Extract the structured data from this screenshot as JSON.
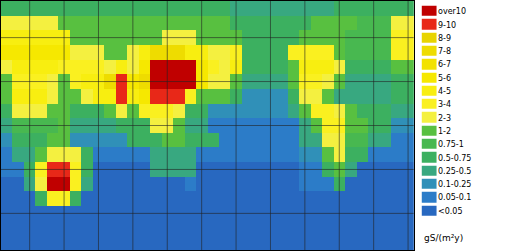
{
  "chart_data": {
    "type": "heatmap",
    "unit": "gS/(m²y)",
    "x": [
      -20,
      -10,
      0,
      10,
      20,
      30,
      40,
      50,
      60,
      70,
      80,
      90,
      100,
      110,
      120,
      130,
      140,
      150,
      160,
      170,
      180,
      190,
      200,
      210,
      220,
      230,
      240,
      250,
      260,
      270,
      280,
      290,
      300,
      310,
      320,
      330
    ],
    "y": [
      80,
      70,
      60,
      50,
      40,
      30,
      20,
      10,
      0,
      -10,
      -20,
      -30,
      -40,
      -50,
      -60,
      -70,
      -80
    ],
    "xlim": [
      -25,
      335
    ],
    "ylim": [
      -85,
      85
    ],
    "xticks": [
      0,
      30,
      60,
      90,
      120,
      150,
      180,
      210,
      240,
      270,
      300,
      330
    ],
    "yticks": [
      -60,
      -30,
      0,
      30,
      60
    ],
    "grid": true,
    "tick_labels": false,
    "cells": [
      [
        0.6,
        0.6,
        0.6,
        0.6,
        0.6,
        0.6,
        0.6,
        0.6,
        0.6,
        0.6,
        0.6,
        0.6,
        0.6,
        0.6,
        0.6,
        0.6,
        0.6,
        0.6,
        0.6,
        0.6,
        0.3,
        0.3,
        0.3,
        0.3,
        0.3,
        0.3,
        0.3,
        0.3,
        0.3,
        0.6,
        0.6,
        0.6,
        0.6,
        0.6,
        0.6,
        0.6
      ],
      [
        2.5,
        2.5,
        2.5,
        2.5,
        2.5,
        1.5,
        1.5,
        1.5,
        1.5,
        1.5,
        1.5,
        1.5,
        1.5,
        1.5,
        1.5,
        1.5,
        1.5,
        1.5,
        1.5,
        1.5,
        0.6,
        0.6,
        0.6,
        0.6,
        0.6,
        0.6,
        0.6,
        1.5,
        1.5,
        1.5,
        1.5,
        0.9,
        0.9,
        0.9,
        2.5,
        2.5
      ],
      [
        4.5,
        4.5,
        4.5,
        4.5,
        4.5,
        4.5,
        1.5,
        1.5,
        1.5,
        1.5,
        1.5,
        1.5,
        1.5,
        1.5,
        2.5,
        2.5,
        2.5,
        1.5,
        1.5,
        1.5,
        1.5,
        0.6,
        0.6,
        0.6,
        0.6,
        0.6,
        1.5,
        1.5,
        1.5,
        1.5,
        0.9,
        0.9,
        0.9,
        0.9,
        3.5,
        3.5
      ],
      [
        5.5,
        5.5,
        5.5,
        5.5,
        5.5,
        5.5,
        2.5,
        2.5,
        2.5,
        1.5,
        1.5,
        2.5,
        4.5,
        7.5,
        7.5,
        7.5,
        4.5,
        4.5,
        2.5,
        2.5,
        3.5,
        0.6,
        0.6,
        0.6,
        0.6,
        3.5,
        3.5,
        3.5,
        3.5,
        1.5,
        0.9,
        0.9,
        0.9,
        0.9,
        3.5,
        3.5
      ],
      [
        2.5,
        4.5,
        4.5,
        4.5,
        4.5,
        3.5,
        3.5,
        3.5,
        3.5,
        2.5,
        4.5,
        2.5,
        5.5,
        12,
        12,
        12,
        12,
        5.5,
        3.5,
        2.5,
        4.5,
        0.6,
        0.6,
        0.6,
        0.6,
        1.5,
        4.5,
        4.5,
        4.5,
        2.5,
        0.6,
        0.6,
        0.6,
        0.6,
        1.5,
        1.5
      ],
      [
        1.5,
        3.5,
        3.5,
        3.5,
        2.5,
        1.5,
        3.5,
        4.5,
        4.5,
        7.5,
        9.5,
        5.5,
        7.5,
        12,
        12,
        12,
        12,
        5.5,
        2.5,
        2.5,
        1.5,
        0.3,
        0.3,
        0.3,
        0.3,
        1.5,
        3.5,
        3.5,
        2.5,
        1.5,
        0.3,
        0.3,
        0.3,
        0.3,
        0.6,
        0.6
      ],
      [
        1.5,
        4.5,
        4.5,
        4.5,
        2.5,
        1.5,
        1.5,
        2.5,
        4.5,
        4.5,
        9.5,
        4.5,
        5.5,
        9.5,
        9.5,
        9.5,
        3.5,
        1.5,
        1.5,
        1.5,
        0.6,
        0.15,
        0.15,
        0.15,
        0.15,
        0.6,
        2.5,
        2.5,
        1.5,
        0.3,
        0.3,
        0.3,
        0.3,
        0.3,
        0.6,
        0.6
      ],
      [
        0.6,
        2.5,
        2.5,
        2.5,
        1.5,
        1.5,
        0.6,
        0.6,
        0.6,
        1.5,
        2.5,
        1.5,
        3.5,
        3.5,
        3.5,
        2.5,
        0.6,
        0.6,
        0.15,
        0.15,
        0.15,
        0.15,
        0.15,
        0.15,
        0.15,
        0.3,
        1.5,
        3.5,
        3.5,
        2.5,
        1.5,
        0.6,
        0.6,
        0.6,
        0.3,
        0.3
      ],
      [
        0.3,
        0.9,
        0.9,
        0.9,
        0.9,
        1.5,
        0.3,
        0.3,
        0.3,
        0.3,
        0.6,
        0.6,
        0.6,
        2.5,
        2.5,
        1.5,
        0.3,
        0.3,
        0.07,
        0.07,
        0.07,
        0.07,
        0.07,
        0.07,
        0.07,
        0.07,
        0.3,
        1.5,
        3.5,
        3.5,
        1.5,
        1.5,
        0.6,
        0.6,
        0.15,
        0.15
      ],
      [
        0.15,
        0.6,
        0.6,
        0.6,
        1.5,
        1.5,
        0.15,
        0.15,
        0.15,
        0.15,
        0.15,
        0.6,
        0.6,
        0.6,
        1.5,
        1.5,
        0.6,
        0.6,
        0.6,
        0.07,
        0.07,
        0.07,
        0.07,
        0.07,
        0.07,
        0.07,
        0.3,
        0.3,
        2.5,
        2.5,
        0.9,
        0.9,
        0.3,
        0.3,
        0.07,
        0.07
      ],
      [
        0.07,
        0.3,
        0.3,
        1.5,
        2.5,
        2.5,
        2.5,
        0.6,
        0.07,
        0.07,
        0.07,
        0.07,
        0.07,
        0.3,
        0.3,
        0.3,
        0.3,
        0.07,
        0.07,
        0.07,
        0.07,
        0.07,
        0.07,
        0.07,
        0.07,
        0.07,
        0.15,
        0.15,
        1.5,
        2.5,
        0.6,
        0.6,
        0.07,
        0.07,
        0.07,
        0.07
      ],
      [
        0.07,
        0.07,
        0.6,
        3.5,
        9.5,
        9.5,
        3.5,
        0.6,
        0.03,
        0.03,
        0.03,
        0.03,
        0.03,
        0.3,
        0.3,
        0.3,
        0.3,
        0.03,
        0.03,
        0.03,
        0.03,
        0.03,
        0.03,
        0.03,
        0.03,
        0.03,
        0.07,
        0.07,
        0.6,
        1.5,
        0.3,
        0.03,
        0.03,
        0.03,
        0.03,
        0.03
      ],
      [
        0.03,
        0.03,
        0.3,
        2.5,
        12,
        12,
        3.5,
        0.3,
        0.03,
        0.03,
        0.03,
        0.03,
        0.03,
        0.03,
        0.03,
        0.03,
        0.07,
        0.03,
        0.03,
        0.03,
        0.03,
        0.03,
        0.03,
        0.03,
        0.03,
        0.03,
        0.07,
        0.07,
        0.07,
        0.6,
        0.03,
        0.03,
        0.03,
        0.03,
        0.03,
        0.03
      ],
      [
        0.03,
        0.03,
        0.03,
        0.6,
        3.5,
        3.5,
        0.6,
        0.03,
        0.03,
        0.03,
        0.03,
        0.03,
        0.03,
        0.03,
        0.03,
        0.03,
        0.03,
        0.03,
        0.03,
        0.03,
        0.03,
        0.03,
        0.03,
        0.03,
        0.03,
        0.03,
        0.03,
        0.03,
        0.03,
        0.03,
        0.03,
        0.03,
        0.03,
        0.03,
        0.03,
        0.03
      ],
      [
        0.03,
        0.03,
        0.03,
        0.03,
        0.03,
        0.03,
        0.03,
        0.03,
        0.03,
        0.03,
        0.03,
        0.03,
        0.03,
        0.03,
        0.03,
        0.03,
        0.03,
        0.03,
        0.03,
        0.03,
        0.03,
        0.03,
        0.03,
        0.03,
        0.03,
        0.03,
        0.03,
        0.03,
        0.03,
        0.03,
        0.03,
        0.03,
        0.03,
        0.03,
        0.03,
        0.03
      ],
      [
        0.03,
        0.03,
        0.03,
        0.03,
        0.03,
        0.03,
        0.03,
        0.03,
        0.03,
        0.03,
        0.03,
        0.03,
        0.03,
        0.03,
        0.03,
        0.03,
        0.03,
        0.03,
        0.03,
        0.03,
        0.03,
        0.03,
        0.03,
        0.03,
        0.03,
        0.03,
        0.03,
        0.03,
        0.03,
        0.03,
        0.03,
        0.03,
        0.03,
        0.03,
        0.03,
        0.03
      ],
      [
        0.03,
        0.03,
        0.03,
        0.03,
        0.03,
        0.03,
        0.03,
        0.03,
        0.03,
        0.03,
        0.03,
        0.03,
        0.03,
        0.03,
        0.03,
        0.03,
        0.03,
        0.03,
        0.03,
        0.03,
        0.03,
        0.03,
        0.03,
        0.03,
        0.03,
        0.03,
        0.03,
        0.03,
        0.03,
        0.03,
        0.03,
        0.03,
        0.03,
        0.03,
        0.03,
        0.03
      ]
    ],
    "classes": [
      {
        "label": "over10",
        "min": 10,
        "color": "#c00000"
      },
      {
        "label": "9-10",
        "min": 9,
        "color": "#e82818"
      },
      {
        "label": "8-9",
        "min": 8,
        "color": "#e8d400"
      },
      {
        "label": "7-8",
        "min": 7,
        "color": "#eedc00"
      },
      {
        "label": "6-7",
        "min": 6,
        "color": "#f2e200"
      },
      {
        "label": "5-6",
        "min": 5,
        "color": "#f6e800"
      },
      {
        "label": "4-5",
        "min": 4,
        "color": "#f8ee10"
      },
      {
        "label": "3-4",
        "min": 3,
        "color": "#faf020"
      },
      {
        "label": "2-3",
        "min": 2,
        "color": "#f4f040"
      },
      {
        "label": "1-2",
        "min": 1,
        "color": "#58c040"
      },
      {
        "label": "0.75-1",
        "min": 0.75,
        "color": "#48b850"
      },
      {
        "label": "0.5-0.75",
        "min": 0.5,
        "color": "#3cb060"
      },
      {
        "label": "0.25-0.5",
        "min": 0.25,
        "color": "#38a880"
      },
      {
        "label": "0.1-0.25",
        "min": 0.1,
        "color": "#3090b8"
      },
      {
        "label": "0.05-0.1",
        "min": 0.05,
        "color": "#2c7cc8"
      },
      {
        "label": "<0.05",
        "min": 0,
        "color": "#2868c0"
      }
    ]
  }
}
